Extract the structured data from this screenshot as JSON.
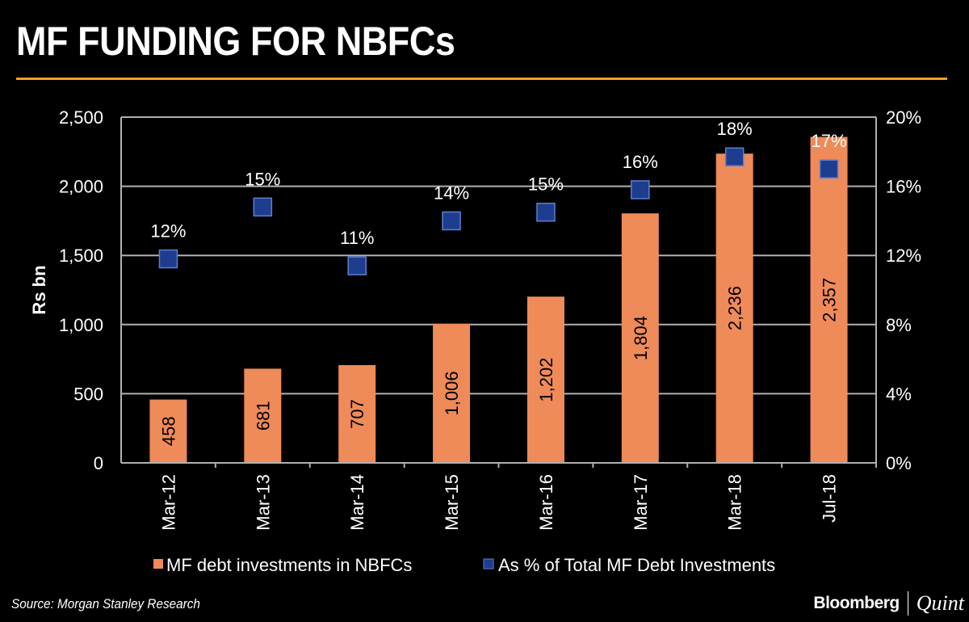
{
  "title": "MF FUNDING FOR NBFCs",
  "source": "Source: Morgan Stanley Research",
  "logo": {
    "brand": "Bloomberg",
    "partner": "Quint"
  },
  "colors": {
    "accent_rule": "#f0a02a",
    "bar": "#ef8a59",
    "marker": "#1f3d8f",
    "marker_border": "#5b7fd0",
    "grid": "#b0b0b0"
  },
  "chart_data": {
    "type": "bar+scatter",
    "title": "MF FUNDING FOR NBFCs",
    "categories": [
      "Mar-12",
      "Mar-13",
      "Mar-14",
      "Mar-15",
      "Mar-16",
      "Mar-17",
      "Mar-18",
      "Jul-18"
    ],
    "ylabel": "Rs bn",
    "ylim": [
      0,
      2500
    ],
    "yticks": [
      "0",
      "500",
      "1,000",
      "1,500",
      "2,000",
      "2,500"
    ],
    "y2lim": [
      0,
      20
    ],
    "y2ticks": [
      "0%",
      "4%",
      "8%",
      "12%",
      "16%",
      "20%"
    ],
    "grid": true,
    "legend_placement": "bottom",
    "series": [
      {
        "name": "MF debt investments in NBFCs",
        "kind": "bar",
        "axis": "left",
        "values": [
          458,
          681,
          707,
          1006,
          1202,
          1804,
          2236,
          2357
        ],
        "labels": [
          "458",
          "681",
          "707",
          "1,006",
          "1,202",
          "1,804",
          "2,236",
          "2,357"
        ]
      },
      {
        "name": "As % of Total MF Debt Investments",
        "kind": "marker",
        "axis": "right",
        "values": [
          11.8,
          14.8,
          11.4,
          14.0,
          14.5,
          15.8,
          17.7,
          17.0
        ],
        "labels": [
          "12%",
          "15%",
          "11%",
          "14%",
          "15%",
          "16%",
          "18%",
          "17%"
        ]
      }
    ]
  }
}
